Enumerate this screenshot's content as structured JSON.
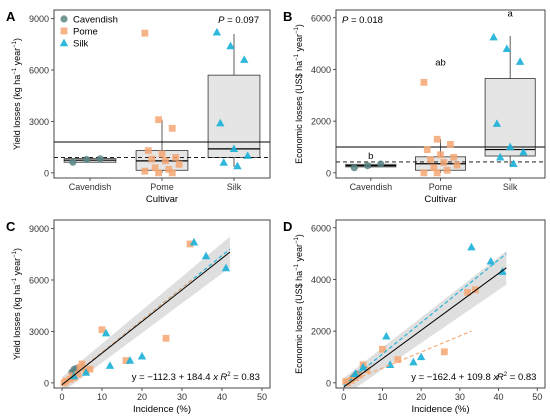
{
  "colors": {
    "Cavendish": "#5a8585",
    "Pome": "#f4a672",
    "Silk": "#1ab0d8",
    "box_fill": "#e5e5e5",
    "fit_line": "#000000",
    "ci_band": "#d2d2d2"
  },
  "markers": {
    "Cavendish": "circle",
    "Pome": "square",
    "Silk": "triangle"
  },
  "chart_data": [
    {
      "panel": "A",
      "type": "box",
      "xlabel": "Cultivar",
      "ylabel_main": "Yield losses (kg ha",
      "ylabel_mid": " year",
      "ylabel_sup1": "−1",
      "ylabel_sup2": "−1",
      "ylabel_close": ")",
      "categories": [
        "Cavendish",
        "Pome",
        "Silk"
      ],
      "yticks": [
        0,
        3000,
        6000,
        9000
      ],
      "ylim": [
        -300,
        9500
      ],
      "legend": [
        "Cavendish",
        "Pome",
        "Silk"
      ],
      "legend_position": "top-left",
      "annotation": "P = 0.097",
      "annotation_p": "P",
      "annotation_rest": " = 0.097",
      "letters": [],
      "hline_solid": 1800,
      "hline_dashed": 900,
      "boxes": [
        {
          "name": "Cavendish",
          "q1": 620,
          "median": 740,
          "q3": 830,
          "whisker_low": 600,
          "whisker_high": 870
        },
        {
          "name": "Pome",
          "q1": 150,
          "median": 700,
          "q3": 1300,
          "whisker_low": 0,
          "whisker_high": 3100
        },
        {
          "name": "Silk",
          "q1": 900,
          "median": 1400,
          "q3": 5700,
          "whisker_low": 350,
          "whisker_high": 8100
        }
      ],
      "points": [
        {
          "series": "Cavendish",
          "ys": [
            620,
            780,
            820
          ]
        },
        {
          "series": "Pome",
          "ys": [
            8150,
            3100,
            2600,
            1300,
            1100,
            900,
            800,
            700,
            500,
            300,
            200,
            100,
            0,
            0
          ]
        },
        {
          "series": "Silk",
          "ys": [
            8200,
            7400,
            6600,
            2900,
            1400,
            1000,
            600,
            400
          ]
        }
      ]
    },
    {
      "panel": "B",
      "type": "box",
      "xlabel": "Cultivar",
      "ylabel_main": "Economic losses (US$ ha",
      "ylabel_mid": " year",
      "ylabel_sup1": "−1",
      "ylabel_sup2": "−1",
      "ylabel_close": ")",
      "categories": [
        "Cavendish",
        "Pome",
        "Silk"
      ],
      "yticks": [
        0,
        2000,
        4000,
        6000
      ],
      "ylim": [
        -200,
        6300
      ],
      "legend": [],
      "legend_position": "none",
      "annotation": "P = 0.018",
      "annotation_p": "P",
      "annotation_rest": " = 0.018",
      "letters": [
        {
          "category": "Cavendish",
          "text": "b",
          "y": 530
        },
        {
          "category": "Pome",
          "text": "ab",
          "y": 4150
        },
        {
          "category": "Silk",
          "text": "a",
          "y": 6050
        }
      ],
      "hline_solid": 1000,
      "hline_dashed": 420,
      "boxes": [
        {
          "name": "Cavendish",
          "q1": 230,
          "median": 280,
          "q3": 330,
          "whisker_low": 200,
          "whisker_high": 360
        },
        {
          "name": "Pome",
          "q1": 100,
          "median": 350,
          "q3": 620,
          "whisker_low": 0,
          "whisker_high": 1300
        },
        {
          "name": "Silk",
          "q1": 650,
          "median": 900,
          "q3": 3650,
          "whisker_low": 250,
          "whisker_high": 5300
        }
      ],
      "points": [
        {
          "series": "Cavendish",
          "ys": [
            200,
            280,
            340
          ]
        },
        {
          "series": "Pome",
          "ys": [
            3500,
            1300,
            1100,
            900,
            700,
            600,
            500,
            400,
            300,
            200,
            100,
            0,
            0
          ]
        },
        {
          "series": "Silk",
          "ys": [
            5250,
            4800,
            4300,
            1900,
            1000,
            800,
            600,
            350
          ]
        }
      ]
    },
    {
      "panel": "C",
      "type": "scatter",
      "xlabel": "Incidence (%)",
      "ylabel_main": "Yield losses (kg ha",
      "ylabel_mid": " year",
      "ylabel_sup1": "−1",
      "ylabel_sup2": "−1",
      "ylabel_close": ")",
      "xticks": [
        0,
        10,
        20,
        30,
        40,
        50
      ],
      "yticks": [
        0,
        3000,
        6000,
        9000
      ],
      "xlim": [
        -2,
        52
      ],
      "ylim": [
        -300,
        9500
      ],
      "equation_pre": "y = −112.3 + 184.4 ",
      "equation_x": "x",
      "r2_label": "R",
      "r2_sup": "2",
      "r2_value": " = 0.83",
      "fit": {
        "intercept": -112.3,
        "slope": 184.4,
        "x_range": [
          0,
          42
        ]
      },
      "ci_halfwidth": {
        "at_low": 450,
        "at_high": 900
      },
      "series_fits": [
        {
          "series": "Silk",
          "x_range": [
            0,
            42
          ],
          "y_range": [
            -100,
            7800
          ]
        },
        {
          "series": "Pome",
          "x_range": [
            0,
            33
          ],
          "y_range": [
            -100,
            6100
          ]
        }
      ],
      "series": [
        {
          "name": "Cavendish",
          "points": [
            [
              2.5,
              620
            ],
            [
              3,
              780
            ],
            [
              3.5,
              830
            ]
          ]
        },
        {
          "name": "Pome",
          "points": [
            [
              32,
              8100
            ],
            [
              10,
              3100
            ],
            [
              26,
              2600
            ],
            [
              16,
              1300
            ],
            [
              5,
              1100
            ],
            [
              7,
              800
            ],
            [
              6,
              700
            ],
            [
              4,
              500
            ],
            [
              3,
              300
            ],
            [
              2,
              200
            ],
            [
              1,
              100
            ],
            [
              0.5,
              0
            ],
            [
              4.5,
              900
            ],
            [
              2.5,
              400
            ]
          ]
        },
        {
          "name": "Silk",
          "points": [
            [
              33,
              8200
            ],
            [
              36,
              7400
            ],
            [
              41,
              6700
            ],
            [
              11,
              2900
            ],
            [
              20,
              1550
            ],
            [
              17,
              1300
            ],
            [
              12,
              1000
            ],
            [
              3,
              400
            ],
            [
              6,
              600
            ]
          ]
        }
      ]
    },
    {
      "panel": "D",
      "type": "scatter",
      "xlabel": "Incidence (%)",
      "ylabel_main": "Economic losses (US$ ha",
      "ylabel_mid": " year",
      "ylabel_sup1": "−1",
      "ylabel_sup2": "−1",
      "ylabel_close": ")",
      "xticks": [
        0,
        10,
        20,
        30,
        40,
        50
      ],
      "yticks": [
        0,
        2000,
        4000,
        6000
      ],
      "xlim": [
        -2,
        52
      ],
      "ylim": [
        -200,
        6300
      ],
      "equation_pre": "y = −162.4 + 109.8 ",
      "equation_x": "x",
      "r2_label": "R",
      "r2_sup": "2",
      "r2_value": " = 0.83",
      "fit": {
        "intercept": -162.4,
        "slope": 109.8,
        "x_range": [
          0,
          42
        ]
      },
      "ci_halfwidth": {
        "at_low": 350,
        "at_high": 650
      },
      "series_fits": [
        {
          "series": "Silk",
          "x_range": [
            0,
            42
          ],
          "y_range": [
            -100,
            5000
          ]
        },
        {
          "series": "Pome",
          "x_range": [
            0,
            33
          ],
          "y_range": [
            -50,
            2000
          ]
        }
      ],
      "series": [
        {
          "name": "Cavendish",
          "points": [
            [
              2.5,
              200
            ],
            [
              3,
              280
            ],
            [
              3.5,
              340
            ]
          ]
        },
        {
          "name": "Pome",
          "points": [
            [
              34,
              3600
            ],
            [
              32,
              3500
            ],
            [
              10,
              1300
            ],
            [
              14,
              900
            ],
            [
              26,
              1200
            ],
            [
              5,
              700
            ],
            [
              6,
              500
            ],
            [
              4,
              300
            ],
            [
              3,
              200
            ],
            [
              2,
              100
            ],
            [
              1,
              0
            ],
            [
              0.5,
              50
            ]
          ]
        },
        {
          "name": "Silk",
          "points": [
            [
              33,
              5250
            ],
            [
              38,
              4700
            ],
            [
              41,
              4300
            ],
            [
              11,
              1800
            ],
            [
              18,
              800
            ],
            [
              20,
              1000
            ],
            [
              12,
              700
            ],
            [
              5,
              600
            ],
            [
              3,
              350
            ]
          ]
        }
      ]
    }
  ]
}
